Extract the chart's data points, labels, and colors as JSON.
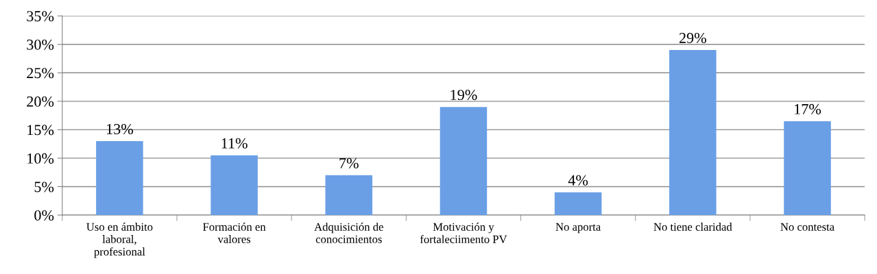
{
  "chart_data": {
    "type": "bar",
    "categories": [
      "Uso en ámbito\nlaboral,\nprofesional",
      "Formación en\nvalores",
      "Adquisición de\nconocimientos",
      "Motivación y\nfortaleciimento PV",
      "No aporta",
      "No tiene claridad",
      "No contesta"
    ],
    "values": [
      13,
      10.5,
      7,
      19,
      4,
      29,
      16.5
    ],
    "value_labels": [
      "13%",
      "11%",
      "7%",
      "19%",
      "4%",
      "29%",
      "17%"
    ],
    "color": "#6a9fe6",
    "ylim": [
      0,
      35
    ],
    "yticks": [
      {
        "value": 0,
        "label": "0%"
      },
      {
        "value": 5,
        "label": "5%"
      },
      {
        "value": 10,
        "label": "10%"
      },
      {
        "value": 15,
        "label": "15%"
      },
      {
        "value": 20,
        "label": "20%"
      },
      {
        "value": 25,
        "label": "25%"
      },
      {
        "value": 30,
        "label": "30%"
      },
      {
        "value": 35,
        "label": "35%"
      }
    ],
    "grid": "y"
  }
}
